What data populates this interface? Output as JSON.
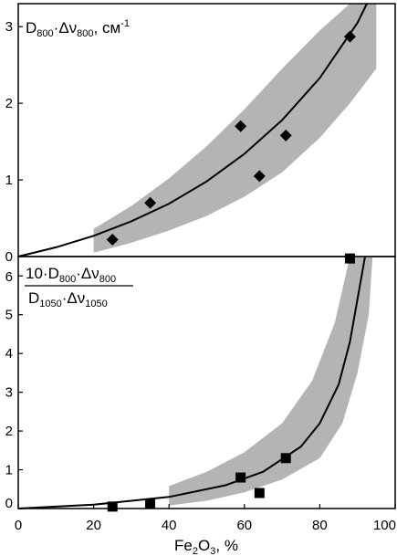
{
  "chart_data": [
    {
      "type": "scatter",
      "title_parts": {
        "d": "D",
        "d_sub": "800",
        "dot": "·",
        "nu": "Δν",
        "nu_sub": "800",
        "unit": ", см",
        "unit_sup": "-1"
      },
      "xlim": [
        0,
        100
      ],
      "ylim": [
        0,
        3.3
      ],
      "y_ticks": [
        "0",
        "1",
        "2",
        "3"
      ],
      "grid": false,
      "series": [
        {
          "kind": "points",
          "marker": "diamond",
          "x": [
            25,
            35,
            59,
            64,
            71,
            88
          ],
          "y": [
            0.22,
            0.7,
            1.7,
            1.05,
            1.58,
            2.87
          ]
        },
        {
          "kind": "curve",
          "x": [
            0,
            10,
            20,
            30,
            40,
            50,
            60,
            70,
            80,
            90,
            92.5
          ],
          "y": [
            0,
            0.12,
            0.27,
            0.46,
            0.69,
            0.98,
            1.34,
            1.78,
            2.33,
            3.05,
            3.3
          ]
        }
      ],
      "band": {
        "color": "#b4b4b4",
        "upper": {
          "x": [
            20,
            30,
            40,
            50,
            60,
            70,
            80,
            88,
            92.5
          ],
          "y": [
            0.36,
            0.66,
            1.02,
            1.44,
            1.92,
            2.45,
            2.95,
            3.3,
            3.3
          ]
        },
        "lower": {
          "x": [
            20,
            30,
            40,
            50,
            60,
            70,
            80,
            88,
            95,
            95
          ],
          "y": [
            0.05,
            0.18,
            0.34,
            0.53,
            0.78,
            1.1,
            1.55,
            2.0,
            2.45,
            3.3
          ]
        }
      }
    },
    {
      "type": "scatter",
      "label_parts": {
        "num_pre": "10·D",
        "num_d_sub": "800",
        "num_mid": "·Δν",
        "num_nu_sub": "800",
        "den_d": "D",
        "den_d_sub": "1050",
        "den_mid": "·Δν",
        "den_nu_sub": "1050"
      },
      "xlim": [
        0,
        100
      ],
      "ylim": [
        0,
        6.5
      ],
      "x_ticks": [
        "0",
        "20",
        "40",
        "60",
        "80",
        "100"
      ],
      "y_ticks": [
        "0",
        "1",
        "2",
        "3",
        "4",
        "5",
        "6"
      ],
      "xlabel_parts": {
        "fe": "Fe",
        "fe_sub": "2",
        "o": "O",
        "o_sub": "3",
        "rest": ", %"
      },
      "grid": false,
      "series": [
        {
          "kind": "points",
          "marker": "square",
          "x": [
            25,
            35,
            59,
            64,
            71,
            88
          ],
          "y": [
            0.05,
            0.12,
            0.8,
            0.4,
            1.3,
            6.45
          ]
        },
        {
          "kind": "curve",
          "x": [
            0,
            20,
            40,
            55,
            65,
            75,
            80,
            85,
            88,
            90,
            92
          ],
          "y": [
            0,
            0.1,
            0.3,
            0.6,
            0.95,
            1.6,
            2.2,
            3.2,
            4.3,
            5.4,
            6.5
          ]
        }
      ],
      "band": {
        "color": "#b4b4b4",
        "upper": {
          "x": [
            40,
            50,
            60,
            70,
            78,
            84,
            88
          ],
          "y": [
            0.58,
            0.95,
            1.45,
            2.2,
            3.3,
            4.8,
            6.5
          ]
        },
        "lower": {
          "x": [
            40,
            50,
            60,
            70,
            80,
            86,
            90,
            93,
            94
          ],
          "y": [
            0.08,
            0.2,
            0.42,
            0.75,
            1.3,
            2.2,
            3.5,
            5.0,
            6.5
          ]
        }
      }
    }
  ]
}
